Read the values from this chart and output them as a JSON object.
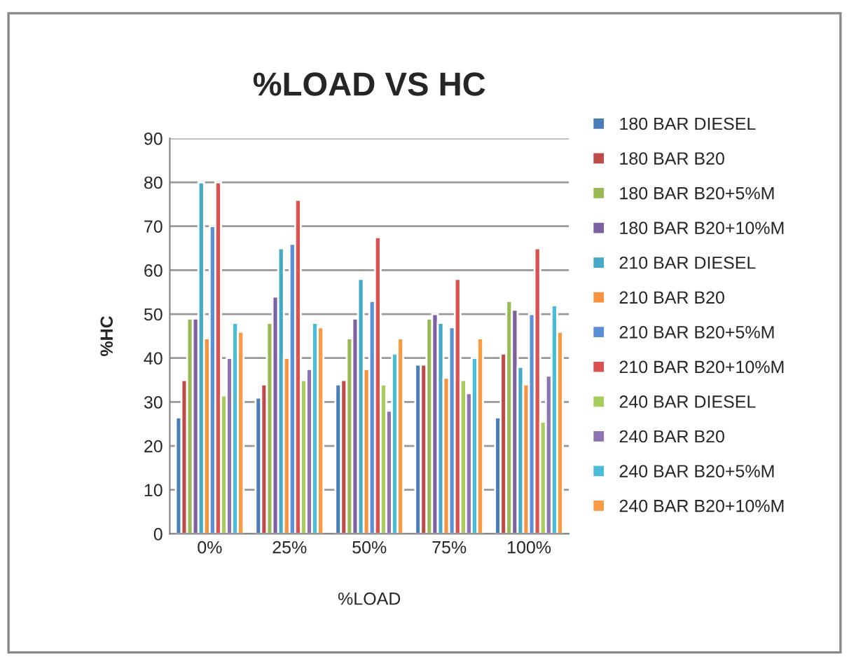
{
  "chart_data": {
    "type": "bar",
    "title": "%LOAD VS HC",
    "xlabel": "%LOAD",
    "ylabel": "%HC",
    "categories": [
      "0%",
      "25%",
      "50%",
      "75%",
      "100%"
    ],
    "ylim": [
      0,
      90
    ],
    "yticks": [
      0,
      10,
      20,
      30,
      40,
      50,
      60,
      70,
      80,
      90
    ],
    "grid": "y",
    "legend": "right",
    "series": [
      {
        "name": "180 BAR DIESEL",
        "color": "#4a7ebb",
        "values": [
          26.5,
          31,
          34,
          38.5,
          26.5
        ]
      },
      {
        "name": "180 BAR B20",
        "color": "#be4b48",
        "values": [
          35,
          34,
          35,
          38.5,
          41
        ]
      },
      {
        "name": "180 BAR B20+5%M",
        "color": "#98b954",
        "values": [
          49,
          48,
          44.5,
          49,
          53
        ]
      },
      {
        "name": "180 BAR B20+10%M",
        "color": "#7d60a0",
        "values": [
          49,
          54,
          49,
          50,
          51
        ]
      },
      {
        "name": "210 BAR DIESEL",
        "color": "#46aac5",
        "values": [
          80,
          65,
          58,
          48,
          38
        ]
      },
      {
        "name": "210 BAR B20",
        "color": "#f69240",
        "values": [
          44.5,
          40,
          37.5,
          35.5,
          34
        ]
      },
      {
        "name": "210 BAR B20+5%M",
        "color": "#5b8fd6",
        "values": [
          70,
          66,
          53,
          47,
          50
        ]
      },
      {
        "name": "210 BAR B20+10%M",
        "color": "#d9524f",
        "values": [
          80,
          76,
          67.5,
          58,
          65
        ]
      },
      {
        "name": "240 BAR DIESEL",
        "color": "#a9cc5f",
        "values": [
          31.5,
          35,
          34,
          35,
          25.5
        ]
      },
      {
        "name": "240 BAR B20",
        "color": "#8e73b3",
        "values": [
          40,
          37.5,
          28,
          32,
          36
        ]
      },
      {
        "name": "240 BAR B20+5%M",
        "color": "#4bbcd8",
        "values": [
          48,
          48,
          41,
          40,
          52
        ]
      },
      {
        "name": "240 BAR B20+10%M",
        "color": "#f99a45",
        "values": [
          46,
          47,
          44.5,
          44.5,
          46
        ]
      }
    ]
  }
}
